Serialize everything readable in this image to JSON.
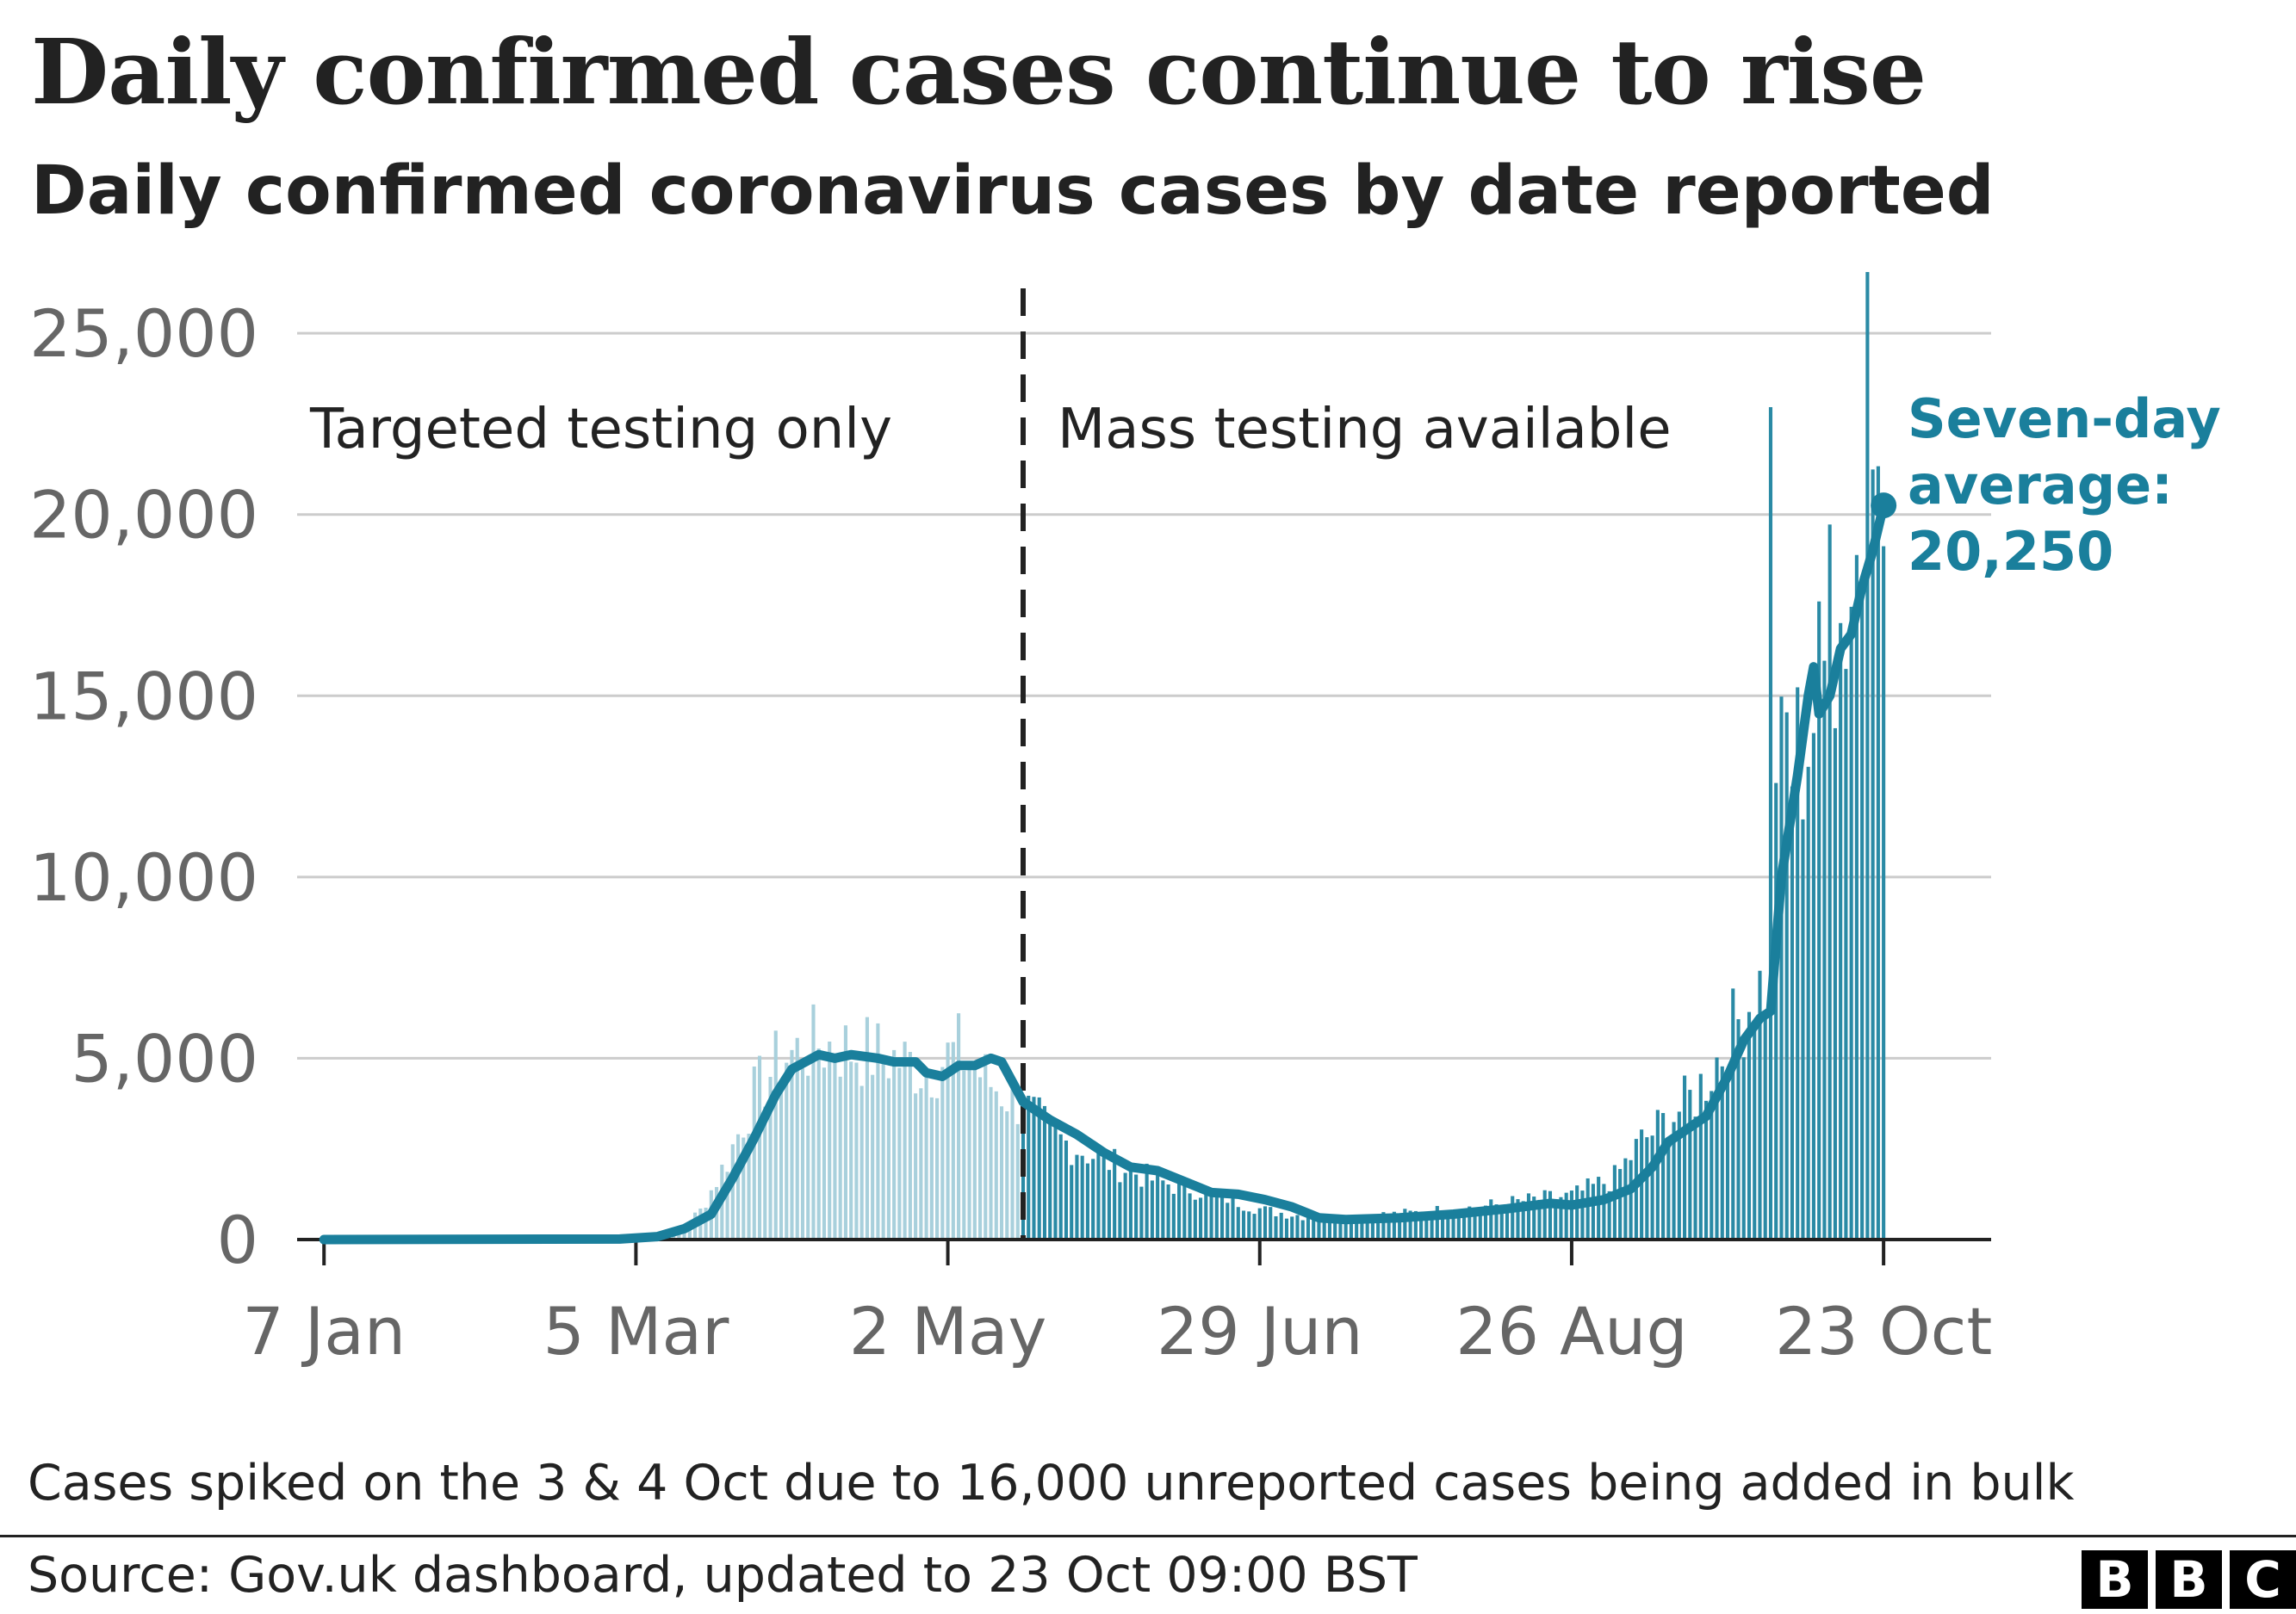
{
  "header": {
    "title": "Daily confirmed cases continue to rise",
    "subtitle": "Daily confirmed coronavirus cases by date reported"
  },
  "footer": {
    "note": "Cases spiked on the 3 & 4 Oct due to 16,000 unreported cases being added in bulk",
    "source": "Source: Gov.uk dashboard, updated to 23 Oct 09:00 BST",
    "logo_letters": [
      "B",
      "B",
      "C"
    ]
  },
  "colors": {
    "bars_before": "#a8d0dc",
    "bars_after": "#2a8aa5",
    "average_line": "#1a7f9c",
    "grid": "#cccccc",
    "divider": "#222222",
    "axis_text": "#666666"
  },
  "chart_data": {
    "type": "bar",
    "x_axis": {
      "ticks": [
        "7 Jan",
        "5 Mar",
        "2 May",
        "29 Jun",
        "26 Aug",
        "23 Oct"
      ],
      "tick_days": [
        0,
        58,
        116,
        174,
        232,
        290
      ],
      "range_days": [
        -5,
        310
      ]
    },
    "y_axis": {
      "ticks": [
        "0",
        "5,000",
        "10,000",
        "15,000",
        "20,000",
        "25,000"
      ],
      "ylim": [
        0,
        26000
      ]
    },
    "grid": true,
    "divider": {
      "day": 130,
      "style": "dashed"
    },
    "annotations": {
      "before": "Targeted testing only",
      "after": "Mass testing available"
    },
    "average_label": [
      "Seven-day",
      "average:",
      "20,250"
    ],
    "daily_bars_control_points": [
      [
        0,
        0
      ],
      [
        50,
        5
      ],
      [
        60,
        50
      ],
      [
        66,
        250
      ],
      [
        70,
        800
      ],
      [
        75,
        2200
      ],
      [
        80,
        4000
      ],
      [
        85,
        5000
      ],
      [
        92,
        5400
      ],
      [
        100,
        5200
      ],
      [
        106,
        5000
      ],
      [
        112,
        4700
      ],
      [
        118,
        5200
      ],
      [
        124,
        4300
      ],
      [
        130,
        3700
      ],
      [
        136,
        2800
      ],
      [
        145,
        2200
      ],
      [
        155,
        1600
      ],
      [
        165,
        1300
      ],
      [
        175,
        800
      ],
      [
        185,
        600
      ],
      [
        200,
        700
      ],
      [
        215,
        900
      ],
      [
        225,
        1100
      ],
      [
        232,
        1200
      ],
      [
        240,
        1700
      ],
      [
        245,
        2700
      ],
      [
        250,
        3300
      ],
      [
        255,
        4000
      ],
      [
        260,
        5200
      ],
      [
        265,
        6600
      ],
      [
        268,
        7100
      ],
      [
        270,
        12500
      ],
      [
        275,
        13500
      ],
      [
        280,
        16000
      ],
      [
        285,
        18800
      ],
      [
        289,
        20800
      ],
      [
        290,
        19500
      ]
    ],
    "daily_bars_spikes": [
      [
        269,
        22961
      ],
      [
        270,
        12594
      ],
      [
        272,
        14542
      ],
      [
        280,
        19724
      ],
      [
        287,
        26688
      ],
      [
        288,
        21242
      ],
      [
        289,
        21331
      ]
    ],
    "average_series": [
      [
        0,
        0
      ],
      [
        55,
        15
      ],
      [
        62,
        80
      ],
      [
        67,
        300
      ],
      [
        72,
        700
      ],
      [
        76,
        1700
      ],
      [
        80,
        2800
      ],
      [
        84,
        4000
      ],
      [
        87,
        4700
      ],
      [
        92,
        5100
      ],
      [
        95,
        5000
      ],
      [
        98,
        5100
      ],
      [
        103,
        5000
      ],
      [
        106,
        4900
      ],
      [
        110,
        4900
      ],
      [
        112,
        4600
      ],
      [
        115,
        4500
      ],
      [
        118,
        4800
      ],
      [
        121,
        4800
      ],
      [
        124,
        5000
      ],
      [
        126,
        4900
      ],
      [
        130,
        3800
      ],
      [
        135,
        3300
      ],
      [
        140,
        2900
      ],
      [
        145,
        2400
      ],
      [
        150,
        2000
      ],
      [
        155,
        1900
      ],
      [
        160,
        1600
      ],
      [
        165,
        1300
      ],
      [
        170,
        1250
      ],
      [
        175,
        1100
      ],
      [
        180,
        900
      ],
      [
        185,
        600
      ],
      [
        190,
        550
      ],
      [
        200,
        600
      ],
      [
        210,
        700
      ],
      [
        220,
        850
      ],
      [
        228,
        1000
      ],
      [
        232,
        950
      ],
      [
        238,
        1100
      ],
      [
        243,
        1400
      ],
      [
        247,
        2000
      ],
      [
        250,
        2700
      ],
      [
        253,
        3000
      ],
      [
        257,
        3400
      ],
      [
        261,
        4500
      ],
      [
        264,
        5500
      ],
      [
        267,
        6100
      ],
      [
        269,
        6300
      ],
      [
        271,
        10000
      ],
      [
        274,
        12800
      ],
      [
        276,
        15000
      ],
      [
        277,
        15800
      ],
      [
        278,
        14500
      ],
      [
        280,
        15000
      ],
      [
        282,
        16300
      ],
      [
        284,
        16700
      ],
      [
        286,
        18000
      ],
      [
        288,
        19000
      ],
      [
        290,
        20250
      ]
    ],
    "average_endpoint": [
      290,
      20250
    ]
  }
}
